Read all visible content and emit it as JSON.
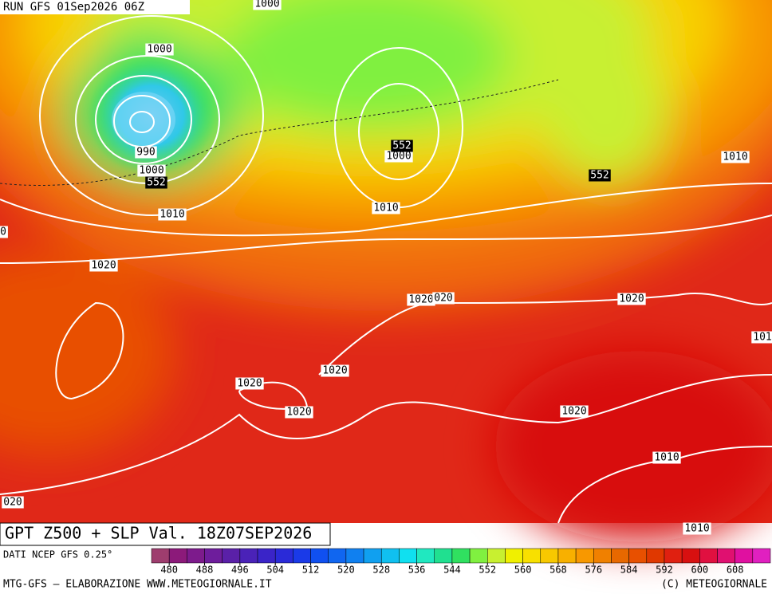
{
  "header": {
    "run": "RUN GFS 01Sep2026 06Z"
  },
  "title": "GPT Z500 + SLP Val. 18Z07SEP2026",
  "source": "DATI NCEP GFS 0.25°",
  "footer": {
    "left": "MTG-GFS — ELABORAZIONE WWW.METEOGIORNALE.IT",
    "right": "(C) METEOGIORNALE"
  },
  "slp_labels": [
    "1000",
    "1000",
    "990",
    "1000",
    "1010",
    "0",
    "1000",
    "1010",
    "1010",
    "1020",
    "1020",
    "020",
    "1020",
    "101",
    "1020",
    "1020",
    "1020",
    "1020",
    "1010",
    "020",
    "1010"
  ],
  "z500_labels": [
    "552",
    "552",
    "552"
  ],
  "colorbar": {
    "range": [
      476,
      616
    ],
    "ticks": [
      480,
      488,
      496,
      504,
      512,
      520,
      528,
      536,
      544,
      552,
      560,
      568,
      576,
      584,
      592,
      600,
      608
    ],
    "colors": [
      "#9e3d6e",
      "#8c1a7a",
      "#7d1b8c",
      "#6e1d9c",
      "#5a20a8",
      "#4a22b8",
      "#3a24c8",
      "#2a2ad8",
      "#1a3ae8",
      "#1050f0",
      "#1066f0",
      "#1080f0",
      "#10a0f0",
      "#10c0f0",
      "#10e0f0",
      "#20e8c0",
      "#20e090",
      "#30e060",
      "#80f040",
      "#c8f030",
      "#f0f000",
      "#f8e000",
      "#f8c800",
      "#f8b000",
      "#f89800",
      "#f08000",
      "#e86800",
      "#e85000",
      "#e03800",
      "#e02010",
      "#d81010",
      "#e01040",
      "#e01070",
      "#e010a0",
      "#e020c0"
    ]
  }
}
